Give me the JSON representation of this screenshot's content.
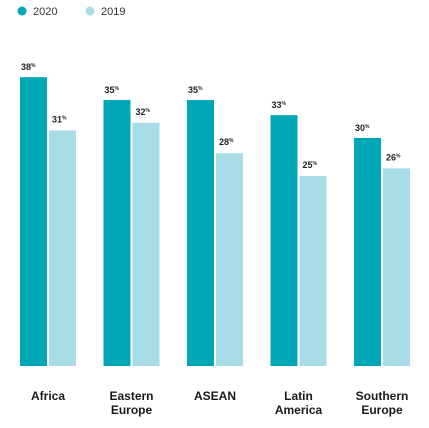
{
  "chart_data": {
    "type": "bar",
    "categories": [
      [
        "Africa"
      ],
      [
        "Eastern",
        "Europe"
      ],
      [
        "ASEAN"
      ],
      [
        "Latin",
        "America"
      ],
      [
        "Southern",
        "Europe"
      ]
    ],
    "series": [
      {
        "name": "2020",
        "values": [
          38,
          35,
          35,
          33,
          30
        ],
        "color": "#00a7b6"
      },
      {
        "name": "2019",
        "values": [
          31,
          32,
          28,
          25,
          26
        ],
        "color": "#a8dde8"
      }
    ],
    "value_suffix": "%",
    "ylim": [
      0,
      40
    ],
    "legend_position": "top-left",
    "grid": false,
    "title": "",
    "xlabel": "",
    "ylabel": ""
  }
}
